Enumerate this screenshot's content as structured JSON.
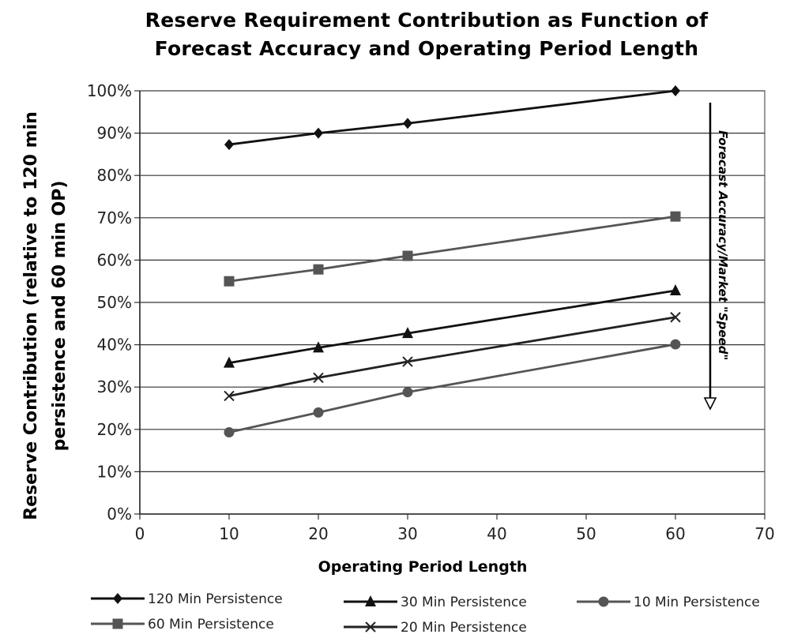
{
  "chart_data": {
    "type": "line",
    "title_line1": "Reserve Requirement Contribution as Function of",
    "title_line2": "Forecast Accuracy and Operating Period Length",
    "xlabel": "Operating Period Length",
    "ylabel_line1": "Reserve Contribution (relative to 120 min",
    "ylabel_line2": "persistence and 60 min OP)",
    "xlim": [
      0,
      70
    ],
    "ylim": [
      0,
      100
    ],
    "x_ticks": [
      "0",
      "10",
      "20",
      "30",
      "40",
      "50",
      "60",
      "70"
    ],
    "y_ticks": [
      "0%",
      "10%",
      "20%",
      "30%",
      "40%",
      "50%",
      "60%",
      "70%",
      "80%",
      "90%",
      "100%"
    ],
    "grid": "horizontal",
    "legend_position": "bottom",
    "annotation": "Forecast Accuracy/Market \"Speed\"",
    "x": [
      10,
      20,
      30,
      60
    ],
    "series": [
      {
        "name": "120 Min Persistence",
        "values": [
          87.3,
          90,
          92.3,
          100
        ],
        "color": "#111111",
        "marker": "diamond"
      },
      {
        "name": "60 Min Persistence",
        "values": [
          55,
          57.8,
          61,
          70.3
        ],
        "color": "#555555",
        "marker": "square"
      },
      {
        "name": "30 Min Persistence",
        "values": [
          35.7,
          39.3,
          42.7,
          52.8
        ],
        "color": "#111111",
        "marker": "triangle"
      },
      {
        "name": "20 Min Persistence",
        "values": [
          27.9,
          32.2,
          36,
          46.5
        ],
        "color": "#222222",
        "marker": "x"
      },
      {
        "name": "10 Min Persistence",
        "values": [
          19.3,
          24,
          28.8,
          40.1
        ],
        "color": "#555555",
        "marker": "circle"
      }
    ]
  }
}
